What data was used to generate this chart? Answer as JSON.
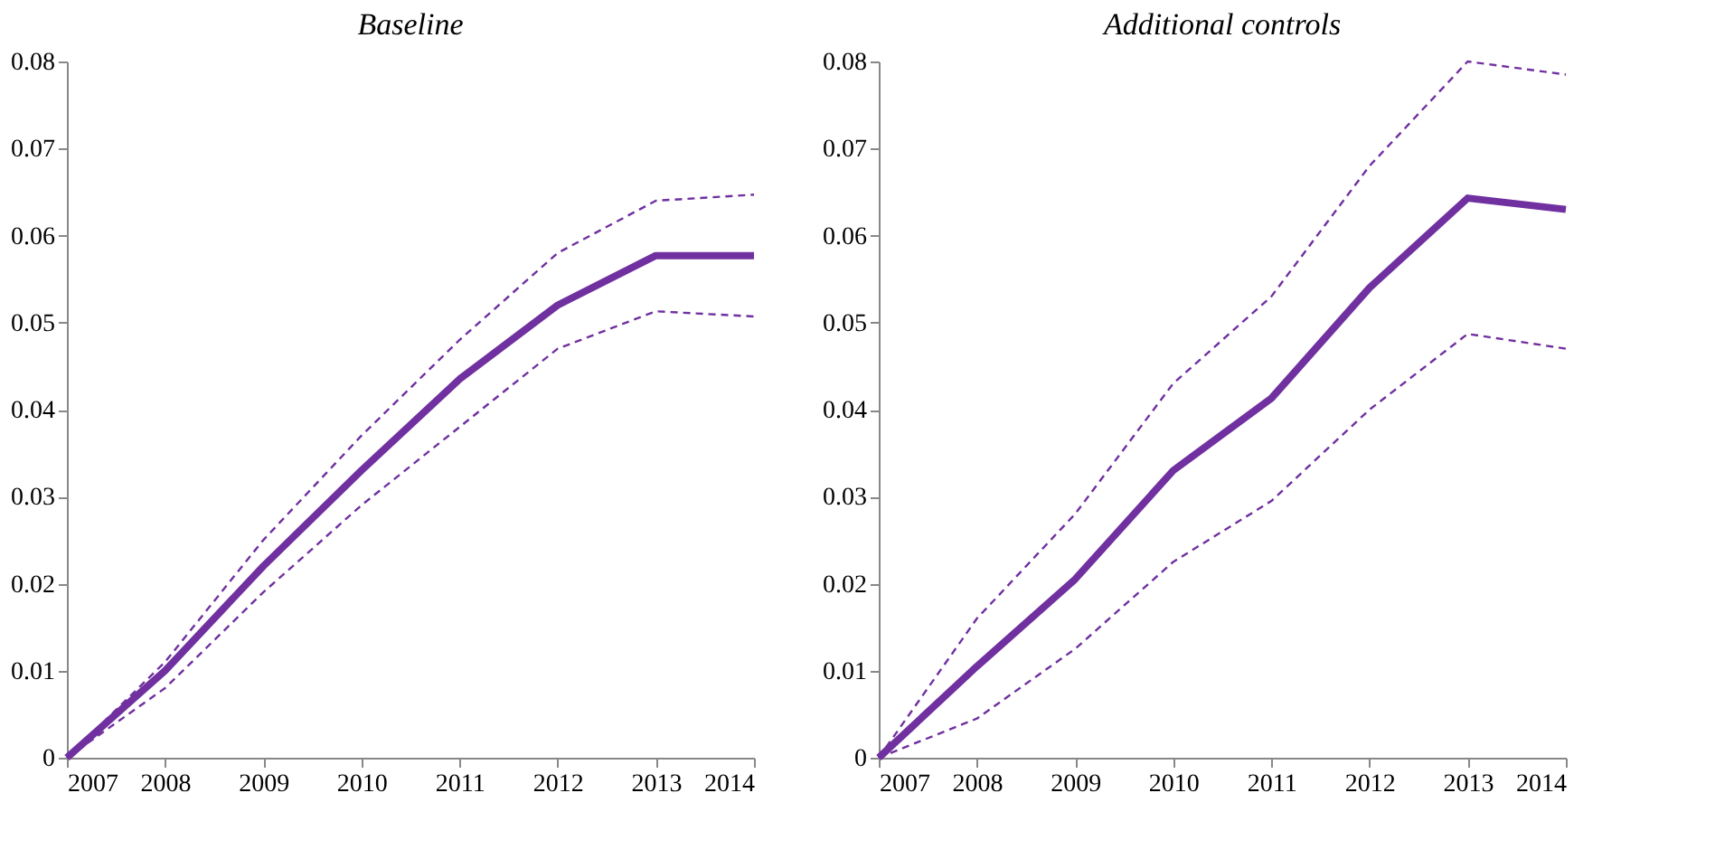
{
  "chart_data": [
    {
      "type": "line",
      "title": "Baseline",
      "x": [
        2007,
        2008,
        2009,
        2010,
        2011,
        2012,
        2013,
        2014
      ],
      "xlim": [
        2007,
        2014
      ],
      "xticks": [
        2007,
        2008,
        2009,
        2010,
        2011,
        2012,
        2013,
        2014
      ],
      "ylim": [
        0,
        0.08
      ],
      "yticks": [
        0,
        0.01,
        0.02,
        0.03,
        0.04,
        0.05,
        0.06,
        0.07,
        0.08
      ],
      "grid": false,
      "series": [
        {
          "color": "#7030a0",
          "line_style": "solid",
          "values": [
            0,
            0.01,
            0.022,
            0.033,
            0.0435,
            0.052,
            0.0577,
            0.0577
          ]
        },
        {
          "color": "#7030a0",
          "line_style": "dashed",
          "values": [
            0,
            0.011,
            0.025,
            0.037,
            0.048,
            0.058,
            0.064,
            0.0647
          ]
        },
        {
          "color": "#7030a0",
          "line_style": "dashed",
          "values": [
            0,
            0.008,
            0.019,
            0.029,
            0.038,
            0.047,
            0.0513,
            0.0507
          ]
        }
      ]
    },
    {
      "type": "line",
      "title": "Additional controls",
      "x": [
        2007,
        2008,
        2009,
        2010,
        2011,
        2012,
        2013,
        2014
      ],
      "xlim": [
        2007,
        2014
      ],
      "xticks": [
        2007,
        2008,
        2009,
        2010,
        2011,
        2012,
        2013,
        2014
      ],
      "ylim": [
        0,
        0.08
      ],
      "yticks": [
        0,
        0.01,
        0.02,
        0.03,
        0.04,
        0.05,
        0.06,
        0.07,
        0.08
      ],
      "grid": false,
      "series": [
        {
          "color": "#7030a0",
          "line_style": "solid",
          "values": [
            0,
            0.0105,
            0.0205,
            0.033,
            0.0413,
            0.054,
            0.0643,
            0.063
          ]
        },
        {
          "color": "#7030a0",
          "line_style": "dashed",
          "values": [
            0,
            0.016,
            0.028,
            0.043,
            0.053,
            0.068,
            0.08,
            0.0785
          ]
        },
        {
          "color": "#7030a0",
          "line_style": "dashed",
          "values": [
            0,
            0.0045,
            0.0125,
            0.0225,
            0.0295,
            0.04,
            0.0487,
            0.047
          ]
        }
      ]
    }
  ]
}
